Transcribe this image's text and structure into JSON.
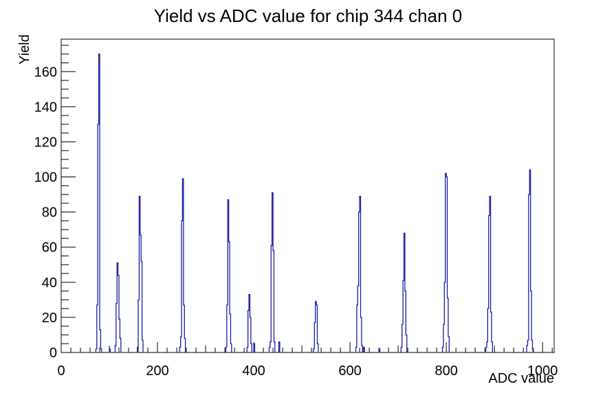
{
  "title": "Yield vs ADC value for chip 344 chan 0",
  "axes": {
    "x_title": "ADC value",
    "y_title": "Yield",
    "x_tick_labels": [
      "0",
      "200",
      "400",
      "600",
      "800",
      "1000"
    ],
    "y_tick_labels": [
      "0",
      "20",
      "40",
      "60",
      "80",
      "100",
      "120",
      "140",
      "160"
    ]
  },
  "chart_data": {
    "type": "bar",
    "subtype": "histogram-outline",
    "title": "Yield vs ADC value for chip 344 chan 0",
    "xlabel": "ADC value",
    "ylabel": "Yield",
    "xlim": [
      0,
      1024
    ],
    "ylim": [
      0,
      178.5
    ],
    "x_major_ticks": [
      0,
      200,
      400,
      600,
      800,
      1000
    ],
    "y_major_ticks": [
      0,
      20,
      40,
      60,
      80,
      100,
      120,
      140,
      160
    ],
    "x_minor_step": 20,
    "y_minor_step": 5,
    "grid": false,
    "legend": false,
    "bin_width": 2,
    "line_color": "#1a1aa6",
    "frame_color": "#000000",
    "clusters": [
      {
        "name": "peak-78",
        "bins": [
          [
            73,
            2
          ],
          [
            75,
            27
          ],
          [
            77,
            130
          ],
          [
            79,
            170
          ],
          [
            81,
            13
          ],
          [
            83,
            2
          ]
        ]
      },
      {
        "name": "blip-101",
        "bins": [
          [
            101,
            2
          ]
        ]
      },
      {
        "name": "peak-118",
        "bins": [
          [
            113,
            4
          ],
          [
            115,
            28
          ],
          [
            117,
            51
          ],
          [
            119,
            44
          ],
          [
            121,
            19
          ],
          [
            123,
            8
          ]
        ]
      },
      {
        "name": "peak-163",
        "bins": [
          [
            159,
            3
          ],
          [
            161,
            30
          ],
          [
            163,
            89
          ],
          [
            165,
            67
          ],
          [
            167,
            52
          ],
          [
            169,
            7
          ]
        ]
      },
      {
        "name": "peak-253",
        "bins": [
          [
            247,
            3
          ],
          [
            249,
            9
          ],
          [
            251,
            75
          ],
          [
            253,
            99
          ],
          [
            255,
            27
          ],
          [
            257,
            8
          ]
        ]
      },
      {
        "name": "peak-347",
        "bins": [
          [
            343,
            3
          ],
          [
            345,
            27
          ],
          [
            347,
            87
          ],
          [
            349,
            63
          ],
          [
            351,
            22
          ],
          [
            353,
            5
          ]
        ]
      },
      {
        "name": "peak-391",
        "bins": [
          [
            387,
            3
          ],
          [
            389,
            24
          ],
          [
            391,
            33
          ],
          [
            393,
            20
          ],
          [
            395,
            5
          ]
        ]
      },
      {
        "name": "blip-401",
        "bins": [
          [
            401,
            5
          ]
        ]
      },
      {
        "name": "peak-439",
        "bins": [
          [
            433,
            3
          ],
          [
            435,
            6
          ],
          [
            437,
            61
          ],
          [
            439,
            91
          ],
          [
            441,
            58
          ],
          [
            443,
            6
          ]
        ]
      },
      {
        "name": "blip-453",
        "bins": [
          [
            453,
            6
          ]
        ]
      },
      {
        "name": "peak-529",
        "bins": [
          [
            525,
            2
          ],
          [
            527,
            17
          ],
          [
            529,
            29
          ],
          [
            531,
            27
          ],
          [
            533,
            5
          ]
        ]
      },
      {
        "name": "peak-621",
        "bins": [
          [
            613,
            3
          ],
          [
            615,
            27
          ],
          [
            617,
            38
          ],
          [
            619,
            80
          ],
          [
            621,
            89
          ],
          [
            623,
            20
          ],
          [
            625,
            4
          ]
        ]
      },
      {
        "name": "blip-629",
        "bins": [
          [
            629,
            3
          ]
        ]
      },
      {
        "name": "blip-661",
        "bins": [
          [
            661,
            2
          ]
        ]
      },
      {
        "name": "peak-713",
        "bins": [
          [
            707,
            3
          ],
          [
            709,
            16
          ],
          [
            711,
            41
          ],
          [
            713,
            68
          ],
          [
            715,
            35
          ],
          [
            717,
            10
          ]
        ]
      },
      {
        "name": "peak-799",
        "bins": [
          [
            793,
            3
          ],
          [
            795,
            16
          ],
          [
            797,
            40
          ],
          [
            799,
            102
          ],
          [
            801,
            100
          ],
          [
            803,
            31
          ],
          [
            805,
            9
          ]
        ]
      },
      {
        "name": "peak-891",
        "bins": [
          [
            883,
            3
          ],
          [
            885,
            6
          ],
          [
            887,
            25
          ],
          [
            889,
            78
          ],
          [
            891,
            89
          ],
          [
            893,
            23
          ],
          [
            895,
            6
          ]
        ]
      },
      {
        "name": "peak-974",
        "bins": [
          [
            968,
            4
          ],
          [
            970,
            7
          ],
          [
            972,
            90
          ],
          [
            974,
            104
          ],
          [
            976,
            35
          ],
          [
            978,
            7
          ],
          [
            980,
            2
          ]
        ]
      }
    ]
  }
}
